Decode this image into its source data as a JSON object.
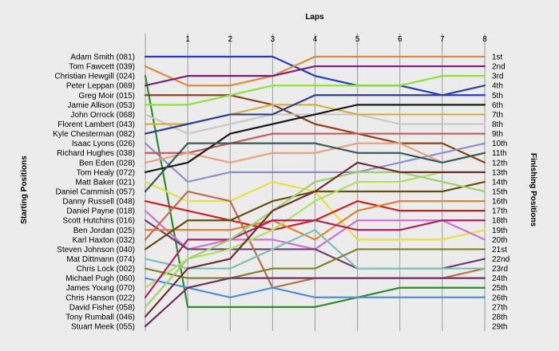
{
  "chart_data": {
    "type": "line",
    "title": "",
    "xlabel": "Laps",
    "ylabel_left": "Starting Positions",
    "ylabel_right": "Finishing Positions",
    "x": [
      0,
      1,
      2,
      3,
      4,
      5,
      6,
      7,
      8
    ],
    "x_tick_labels": [
      "1",
      "2",
      "3",
      "4",
      "5",
      "6",
      "7",
      "8"
    ],
    "ylim": [
      1,
      29
    ],
    "y_inverted": true,
    "grid_x": true,
    "grid_y": false,
    "starting_positions": [
      "Adam Smith (081)",
      "Tom Fawcett (039)",
      "Christian Hewgill (024)",
      "Peter Leppan (069)",
      "Greg Moir (015)",
      "Jamie Allison (053)",
      "John Orrock (068)",
      "Florent Lambert (043)",
      "Kyle Chesterman (082)",
      "Isaac Lyons (026)",
      "Richard Hughes (038)",
      "Ben Eden (028)",
      "Tom Healy (072)",
      "Matt Baker (021)",
      "Daniel Cammish (057)",
      "Danny Russell (048)",
      "Daniel Payne (018)",
      "Scott Hutchins (016)",
      "Ben Jordan (025)",
      "Karl Haxton (032)",
      "Steven Johnson (040)",
      "Mat Dittmann (074)",
      "Chris Lock (002)",
      "Michael Pugh (060)",
      "James Young (070)",
      "Chris Hanson (022)",
      "David Fisher (058)",
      "Tony Rumball (046)",
      "Stuart Meek (055)"
    ],
    "finishing_positions": [
      "1st",
      "2nd",
      "3rd",
      "4th",
      "5th",
      "6th",
      "7th",
      "8th",
      "9th",
      "10th",
      "11th",
      "12th",
      "13th",
      "14th",
      "15th",
      "16th",
      "17th",
      "18th",
      "19th",
      "20th",
      "21st",
      "22nd",
      "23rd",
      "24th",
      "25th",
      "26th",
      "27th",
      "28th",
      "29th"
    ],
    "series": [
      {
        "color": "#1f3fbf",
        "values": [
          1,
          1,
          1,
          1,
          3,
          4,
          4,
          5,
          5
        ]
      },
      {
        "color": "#d98c3a",
        "values": [
          2,
          4,
          4,
          3,
          1,
          1,
          1,
          1,
          1
        ]
      },
      {
        "color": "#2e8b2e",
        "values": [
          3,
          27,
          27,
          27,
          27,
          26,
          25,
          25,
          25
        ]
      },
      {
        "color": "#7a1f7a",
        "values": [
          4,
          3,
          3,
          3,
          2,
          2,
          2,
          2,
          2
        ]
      },
      {
        "color": "#8b4513",
        "values": [
          5,
          5,
          5,
          6,
          8,
          9,
          10,
          10,
          12
        ]
      },
      {
        "color": "#8ee03c",
        "values": [
          6,
          6,
          5,
          4,
          4,
          4,
          4,
          3,
          3
        ]
      },
      {
        "color": "#c8c8c8",
        "values": [
          7,
          9,
          8,
          7,
          7,
          7,
          8,
          8,
          8
        ]
      },
      {
        "color": "#d4b040",
        "values": [
          8,
          8,
          7,
          6,
          6,
          7,
          7,
          7,
          7
        ]
      },
      {
        "color": "#2f3f8f",
        "values": [
          9,
          8,
          7,
          7,
          5,
          5,
          5,
          5,
          4
        ]
      },
      {
        "color": "#9090c8",
        "values": [
          10,
          14,
          13,
          13,
          13,
          13,
          12,
          11,
          10
        ]
      },
      {
        "color": "#c85a5a",
        "values": [
          11,
          11,
          10,
          9,
          9,
          9,
          9,
          9,
          9
        ]
      },
      {
        "color": "#e8a080",
        "values": [
          12,
          11,
          12,
          11,
          11,
          10,
          10,
          12,
          11
        ]
      },
      {
        "color": "#1a1a1a",
        "values": [
          13,
          12,
          9,
          8,
          7,
          6,
          6,
          6,
          6
        ]
      },
      {
        "color": "#e8e040",
        "values": [
          14,
          16,
          16,
          14,
          15,
          20,
          20,
          20,
          19
        ]
      },
      {
        "color": "#3a5a5a",
        "values": [
          15,
          10,
          10,
          10,
          10,
          11,
          11,
          12,
          11
        ]
      },
      {
        "color": "#cc2020",
        "values": [
          16,
          17,
          18,
          19,
          18,
          16,
          17,
          17,
          17
        ]
      },
      {
        "color": "#d070d0",
        "values": [
          17,
          21,
          20,
          20,
          21,
          18,
          18,
          18,
          20
        ]
      },
      {
        "color": "#704070",
        "values": [
          18,
          21,
          21,
          21,
          21,
          23,
          23,
          23,
          22
        ]
      },
      {
        "color": "#e08030",
        "values": [
          19,
          19,
          19,
          18,
          20,
          17,
          16,
          16,
          16
        ]
      },
      {
        "color": "#b87050",
        "values": [
          20,
          15,
          16,
          25,
          24,
          24,
          24,
          24,
          23
        ]
      },
      {
        "color": "#6a5010",
        "values": [
          21,
          18,
          18,
          16,
          15,
          15,
          15,
          15,
          14
        ]
      },
      {
        "color": "#80c0b0",
        "values": [
          22,
          23,
          23,
          21,
          19,
          23,
          23,
          23,
          23
        ]
      },
      {
        "color": "#808030",
        "values": [
          23,
          24,
          24,
          23,
          23,
          21,
          21,
          21,
          21
        ]
      },
      {
        "color": "#5090d0",
        "values": [
          24,
          25,
          26,
          25,
          26,
          26,
          26,
          26,
          26
        ]
      },
      {
        "color": "#b0e060",
        "values": [
          25,
          22,
          21,
          19,
          16,
          14,
          14,
          13,
          13
        ]
      },
      {
        "color": "#b02060",
        "values": [
          26,
          20,
          20,
          18,
          18,
          19,
          19,
          18,
          18
        ]
      },
      {
        "color": "#a0d070",
        "values": [
          27,
          22,
          20,
          17,
          14,
          13,
          13,
          14,
          15
        ]
      },
      {
        "color": "#703030",
        "values": [
          28,
          23,
          22,
          17,
          15,
          12,
          13,
          13,
          13
        ]
      },
      {
        "color": "#703060",
        "values": [
          29,
          25,
          24,
          24,
          24,
          24,
          24,
          24,
          24
        ]
      }
    ]
  }
}
